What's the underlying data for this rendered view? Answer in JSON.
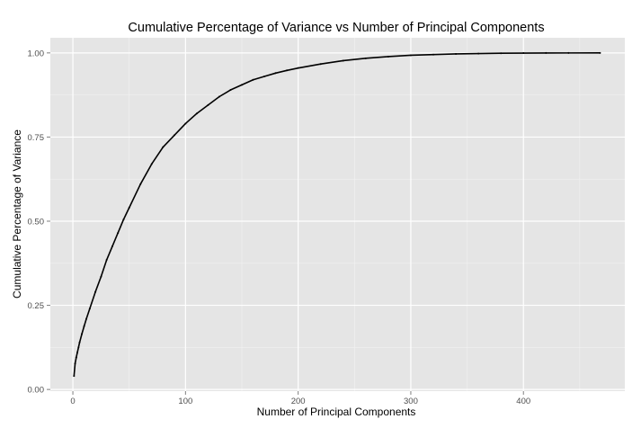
{
  "chart_data": {
    "type": "line",
    "title": "Cumulative Percentage of Variance vs Number of Principal Components",
    "xlabel": "Number of Principal Components",
    "ylabel": "Cumulative Percentage of Variance",
    "xlim": [
      -20,
      490
    ],
    "ylim": [
      -0.005,
      1.045
    ],
    "x_ticks": [
      0,
      100,
      200,
      300,
      400
    ],
    "x_tick_labels": [
      "0",
      "100",
      "200",
      "300",
      "400"
    ],
    "y_ticks": [
      0,
      0.25,
      0.5,
      0.75,
      1.0
    ],
    "y_tick_labels": [
      "0.00",
      "0.25",
      "0.50",
      "0.75",
      "1.00"
    ],
    "grid": true,
    "legend": "none",
    "panel_background": "#e5e5e5",
    "grid_color": "#ffffff",
    "line_color": "#000000",
    "series": [
      {
        "x": [
          1,
          2,
          3,
          4,
          5,
          6,
          8,
          10,
          12,
          15,
          20,
          25,
          30,
          35,
          40,
          45,
          50,
          60,
          70,
          80,
          90,
          100,
          110,
          120,
          130,
          140,
          150,
          160,
          170,
          180,
          190,
          200,
          220,
          240,
          260,
          280,
          300,
          320,
          340,
          360,
          380,
          400,
          420,
          440,
          468
        ],
        "values": [
          0.04,
          0.077,
          0.095,
          0.11,
          0.125,
          0.14,
          0.165,
          0.188,
          0.21,
          0.24,
          0.29,
          0.335,
          0.385,
          0.425,
          0.465,
          0.505,
          0.54,
          0.61,
          0.67,
          0.72,
          0.755,
          0.79,
          0.82,
          0.845,
          0.87,
          0.89,
          0.905,
          0.92,
          0.93,
          0.94,
          0.948,
          0.955,
          0.967,
          0.977,
          0.984,
          0.989,
          0.993,
          0.995,
          0.997,
          0.998,
          0.999,
          0.9995,
          0.9998,
          0.9999,
          1.0
        ]
      }
    ]
  }
}
